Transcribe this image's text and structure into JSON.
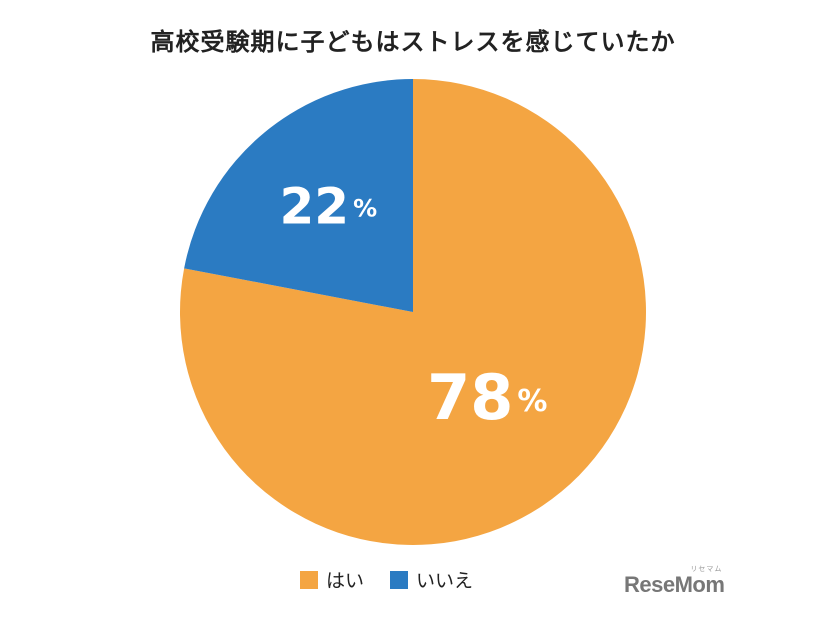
{
  "chart_data": {
    "type": "pie",
    "title": "高校受験期に子どもはストレスを感じていたか",
    "categories": [
      "はい",
      "いいえ"
    ],
    "values": [
      78,
      22
    ],
    "value_labels": [
      "78",
      "22"
    ],
    "unit": "%",
    "colors": [
      "#F4A542",
      "#2B7BC2"
    ],
    "legend_position": "bottom"
  },
  "logo": {
    "text": "ReseMom",
    "ruby": "リセマム"
  }
}
